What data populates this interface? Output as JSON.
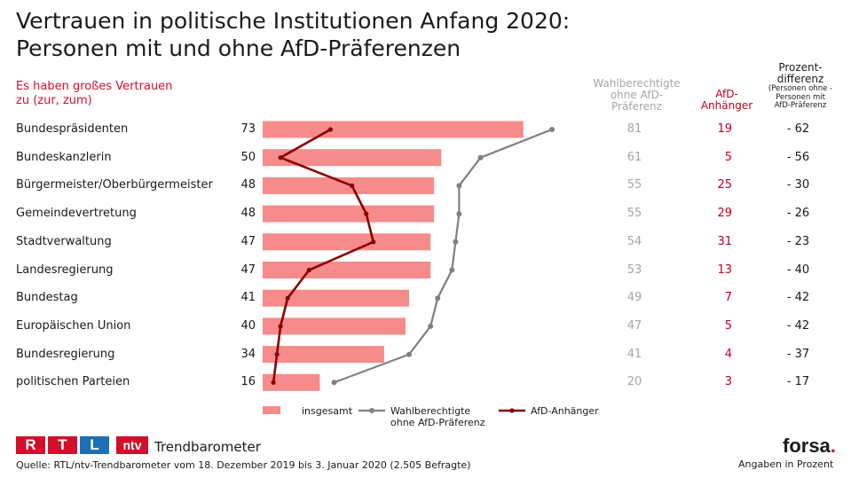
{
  "header": {
    "title_line1": "Vertrauen in politische Institutionen Anfang 2020:",
    "title_line2": "Personen mit und ohne AfD-Präferenzen",
    "subtitle_line1": "Es haben großes Vertrauen",
    "subtitle_line2": "zu (zur, zum)"
  },
  "columns": {
    "gray_line1": "Wahlberechtigte",
    "gray_line2": "ohne AfD-",
    "gray_line3": "Präferenz",
    "red_line1": "AfD-",
    "red_line2": "Anhänger",
    "diff_line1": "Prozent-",
    "diff_line2": "differenz",
    "diff_small1": "(Personen ohne -",
    "diff_small2": "Personen mit",
    "diff_small3": "AfD-Präferenz"
  },
  "rows": [
    {
      "label": "Bundespräsidenten",
      "total": "73",
      "ohne": "81",
      "afd": "19",
      "diff": "- 62"
    },
    {
      "label": "Bundeskanzlerin",
      "total": "50",
      "ohne": "61",
      "afd": "5",
      "diff": "- 56"
    },
    {
      "label": "Bürgermeister/Oberbürgermeister",
      "total": "48",
      "ohne": "55",
      "afd": "25",
      "diff": "- 30"
    },
    {
      "label": "Gemeindevertretung",
      "total": "48",
      "ohne": "55",
      "afd": "29",
      "diff": "- 26"
    },
    {
      "label": "Stadtverwaltung",
      "total": "47",
      "ohne": "54",
      "afd": "31",
      "diff": "- 23"
    },
    {
      "label": "Landesregierung",
      "total": "47",
      "ohne": "53",
      "afd": "13",
      "diff": "- 40"
    },
    {
      "label": "Bundestag",
      "total": "41",
      "ohne": "49",
      "afd": "7",
      "diff": "- 42"
    },
    {
      "label": "Europäischen Union",
      "total": "40",
      "ohne": "47",
      "afd": "5",
      "diff": "- 42"
    },
    {
      "label": "Bundesregierung",
      "total": "34",
      "ohne": "41",
      "afd": "4",
      "diff": "- 37"
    },
    {
      "label": "politischen Parteien",
      "total": "16",
      "ohne": "20",
      "afd": "3",
      "diff": "- 17"
    }
  ],
  "legend": {
    "insgesamt": "insgesamt",
    "ohne_line1": "Wahlberechtigte",
    "ohne_line2": "ohne AfD-Präferenz",
    "afd": "AfD-Anhänger"
  },
  "footer": {
    "brand_rtl_r": "R",
    "brand_rtl_t": "T",
    "brand_rtl_l": "L",
    "brand_ntv": "ntv",
    "brand_name": "Trendbarometer",
    "source": "Quelle: RTL/ntv-Trendbarometer vom 18. Dezember 2019 bis 3. Januar 2020 (2.505 Befragte)",
    "forsa": "forsa",
    "forsa_dot": ".",
    "note": "Angaben in Prozent"
  },
  "chart_data": {
    "type": "bar",
    "categories": [
      "Bundespräsidenten",
      "Bundeskanzlerin",
      "Bürgermeister/Oberbürgermeister",
      "Gemeindevertretung",
      "Stadtverwaltung",
      "Landesregierung",
      "Bundestag",
      "Europäischen Union",
      "Bundesregierung",
      "politischen Parteien"
    ],
    "series": [
      {
        "name": "insgesamt",
        "kind": "bar",
        "values": [
          73,
          50,
          48,
          48,
          47,
          47,
          41,
          40,
          34,
          16
        ]
      },
      {
        "name": "Wahlberechtigte ohne AfD-Präferenz",
        "kind": "line",
        "values": [
          81,
          61,
          55,
          55,
          54,
          53,
          49,
          47,
          41,
          20
        ]
      },
      {
        "name": "AfD-Anhänger",
        "kind": "line",
        "values": [
          19,
          5,
          25,
          29,
          31,
          13,
          7,
          5,
          4,
          3
        ]
      }
    ],
    "orientation": "horizontal",
    "xlim": [
      0,
      100
    ],
    "grid": false,
    "legend_position": "bottom",
    "colors": {
      "bar": "#f58b8b",
      "ohne": "#808080",
      "afd": "#8b0000"
    }
  }
}
